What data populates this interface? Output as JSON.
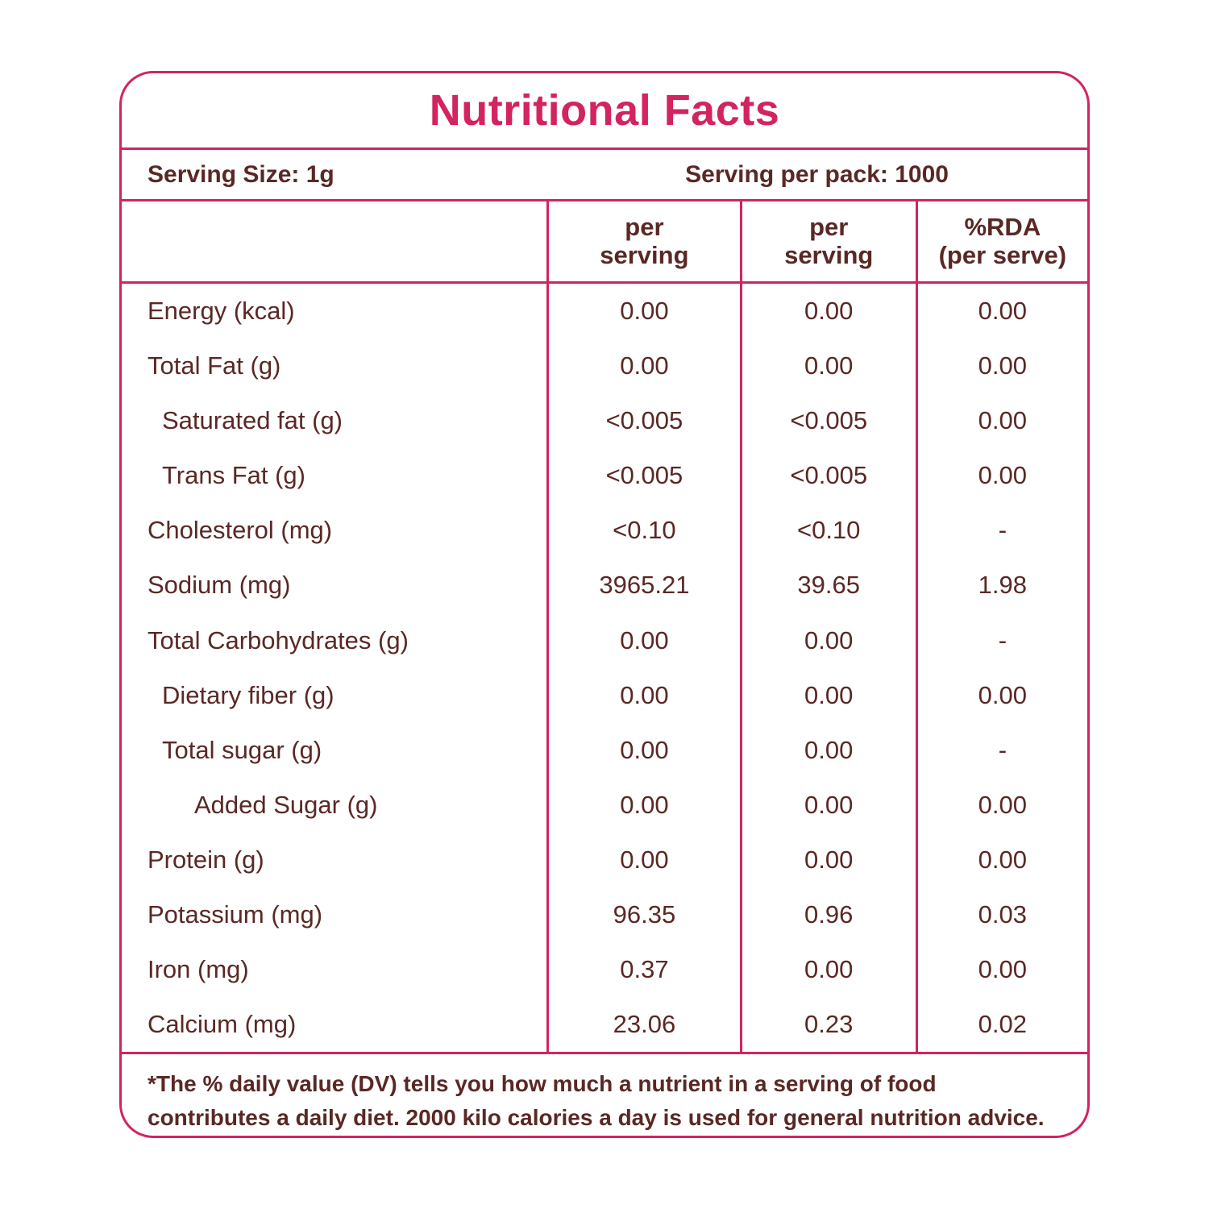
{
  "colors": {
    "accent": "#d32360",
    "text": "#5a2824"
  },
  "title": "Nutritional Facts",
  "serving": {
    "size": "Serving Size: 1g",
    "per_pack": "Serving per pack: 1000"
  },
  "table": {
    "columns": [
      {
        "line1": "per",
        "line2": "serving"
      },
      {
        "line1": "per",
        "line2": "serving"
      },
      {
        "line1": "%RDA",
        "line2": "(per serve)"
      }
    ],
    "rows": [
      {
        "label": "Energy (kcal)",
        "indent": 0,
        "values": [
          "0.00",
          "0.00",
          "0.00"
        ]
      },
      {
        "label": "Total Fat (g)",
        "indent": 0,
        "values": [
          "0.00",
          "0.00",
          "0.00"
        ]
      },
      {
        "label": "Saturated fat (g)",
        "indent": 1,
        "values": [
          "<0.005",
          "<0.005",
          "0.00"
        ]
      },
      {
        "label": "Trans Fat (g)",
        "indent": 1,
        "values": [
          "<0.005",
          "<0.005",
          "0.00"
        ]
      },
      {
        "label": "Cholesterol (mg)",
        "indent": 0,
        "values": [
          "<0.10",
          "<0.10",
          "-"
        ]
      },
      {
        "label": "Sodium (mg)",
        "indent": 0,
        "values": [
          "3965.21",
          "39.65",
          "1.98"
        ]
      },
      {
        "label": "Total Carbohydrates  (g)",
        "indent": 0,
        "values": [
          "0.00",
          "0.00",
          "-"
        ]
      },
      {
        "label": "Dietary fiber (g)",
        "indent": 1,
        "values": [
          "0.00",
          "0.00",
          "0.00"
        ]
      },
      {
        "label": "Total sugar (g)",
        "indent": 1,
        "values": [
          "0.00",
          "0.00",
          "-"
        ]
      },
      {
        "label": "Added Sugar (g)",
        "indent": 2,
        "values": [
          "0.00",
          "0.00",
          "0.00"
        ]
      },
      {
        "label": "Protein (g)",
        "indent": 0,
        "values": [
          "0.00",
          "0.00",
          "0.00"
        ]
      },
      {
        "label": "Potassium (mg)",
        "indent": 0,
        "values": [
          "96.35",
          "0.96",
          "0.03"
        ]
      },
      {
        "label": "Iron (mg)",
        "indent": 0,
        "values": [
          "0.37",
          "0.00",
          "0.00"
        ]
      },
      {
        "label": "Calcium (mg)",
        "indent": 0,
        "values": [
          "23.06",
          "0.23",
          "0.02"
        ]
      }
    ]
  },
  "footnote": "*The % daily value (DV) tells you how much a nutrient in a serving of food contributes a daily diet. 2000 kilo calories a day is used for general nutrition advice."
}
